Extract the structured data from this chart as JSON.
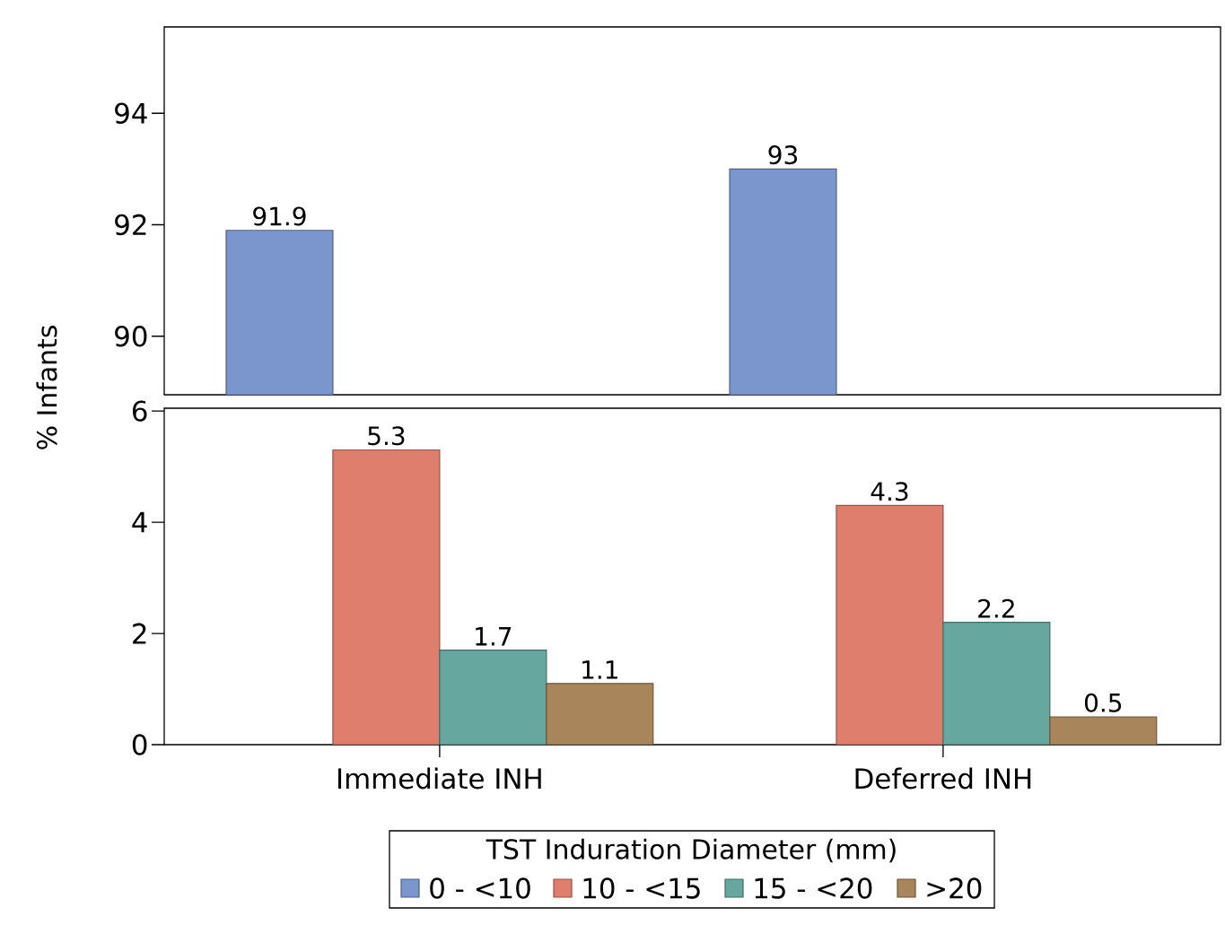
{
  "chart_data": [
    {
      "type": "bar",
      "categories": [
        null,
        null
      ],
      "tick_labels": "y",
      "ylim": [
        88.95,
        95.55
      ],
      "yticks": [
        90,
        92,
        94
      ],
      "series": [
        {
          "color": "#7b96cc",
          "values": [
            91.9,
            93
          ],
          "value_labels": [
            "91.9",
            "93"
          ]
        }
      ]
    },
    {
      "type": "bar",
      "categories": [
        "Immediate INH",
        "Deferred INH"
      ],
      "ylabel": "% Infants",
      "ylim": [
        0,
        6.05
      ],
      "yticks": [
        0,
        2,
        4,
        6
      ],
      "legend": "bottom",
      "legend_title": "TST Induration Diameter (mm)",
      "series": [
        {
          "name": "0 - <10",
          "color": "#7b96cc",
          "values": [
            null,
            null
          ]
        },
        {
          "name": "10 - <15",
          "color": "#e07e6e",
          "values": [
            5.3,
            4.3
          ],
          "value_labels": [
            "5.3",
            "4.3"
          ]
        },
        {
          "name": "15 - <20",
          "color": "#66a8a0",
          "values": [
            1.7,
            2.2
          ],
          "value_labels": [
            "1.7",
            "2.2"
          ]
        },
        {
          "name": ">20",
          "color": "#a8855a",
          "values": [
            1.1,
            0.5
          ],
          "value_labels": [
            "1.1",
            "0.5"
          ]
        }
      ]
    }
  ]
}
